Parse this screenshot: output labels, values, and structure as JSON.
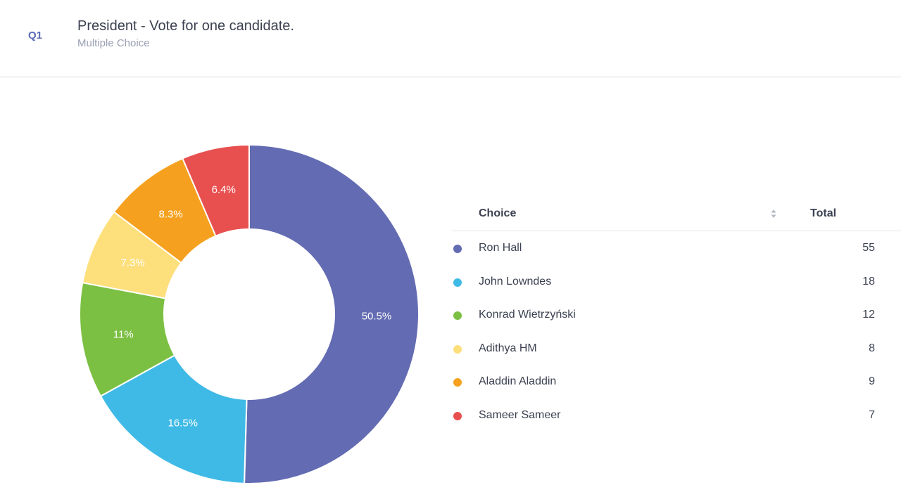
{
  "question": {
    "number": "Q1",
    "title": "President - Vote for one candidate.",
    "type": "Multiple Choice"
  },
  "table": {
    "choice_header": "Choice",
    "total_header": "Total",
    "sort_icon": "sort-arrows-icon",
    "rows": [
      {
        "name": "Ron Hall",
        "total": "55",
        "color": "#636bb2"
      },
      {
        "name": "John Lowndes",
        "total": "18",
        "color": "#3fbae6"
      },
      {
        "name": "Konrad Wietrzyński",
        "total": "12",
        "color": "#7cc043"
      },
      {
        "name": "Adithya HM",
        "total": "8",
        "color": "#fddf7c"
      },
      {
        "name": "Aladdin Aladdin",
        "total": "9",
        "color": "#f5a11f"
      },
      {
        "name": "Sameer Sameer",
        "total": "7",
        "color": "#e85050"
      }
    ]
  },
  "chart_data": {
    "type": "pie",
    "donut": true,
    "categories": [
      "Ron Hall",
      "John Lowndes",
      "Konrad Wietrzyński",
      "Adithya HM",
      "Aladdin Aladdin",
      "Sameer Sameer"
    ],
    "values": [
      55,
      18,
      12,
      8,
      9,
      7
    ],
    "labels": [
      "50.5%",
      "16.5%",
      "11%",
      "7.3%",
      "8.3%",
      "6.4%"
    ],
    "colors": [
      "#636bb2",
      "#3fbae6",
      "#7cc043",
      "#fddf7c",
      "#f5a11f",
      "#e85050"
    ]
  }
}
